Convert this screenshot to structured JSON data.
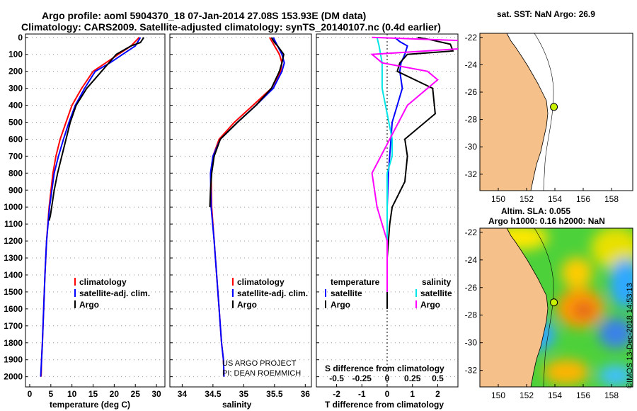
{
  "title_line1": "Argo profile: aoml 5904370_18 07-Jan-2014 27.08S 153.93E (DM data)",
  "title_line2": "Climatology: CARS2009. Satellite-adjusted climatology: synTS_20140107.nc (0.4d earlier)",
  "colors": {
    "climatology": "#ff0000",
    "satellite": "#0000ff",
    "argo": "#000000",
    "salinity_satellite": "#00e5e5",
    "salinity_argo": "#ff00ff",
    "land": "#f5c089",
    "float": "#c8f000"
  },
  "chart_data": [
    {
      "type": "line",
      "id": "temperature-profile",
      "xlabel": "temperature (deg C)",
      "ylabel": "",
      "xlim": [
        -1,
        32
      ],
      "ylim": [
        2060,
        -20
      ],
      "yinverted": true,
      "xticks": [
        0,
        5,
        10,
        15,
        20,
        25,
        30
      ],
      "yticks": [
        0,
        100,
        200,
        300,
        400,
        500,
        600,
        700,
        800,
        900,
        1000,
        1100,
        1200,
        1300,
        1400,
        1500,
        1600,
        1700,
        1800,
        1900,
        2000
      ],
      "legend": [
        "climatology",
        "satellite-adj. clim.",
        "Argo"
      ],
      "legend_position": "lower-right",
      "series": [
        {
          "name": "climatology",
          "color": "#ff0000",
          "x": [
            25.9,
            24,
            21,
            18,
            15,
            12.3,
            10,
            8.6,
            7.2,
            6.2,
            5.5,
            4.6,
            4,
            3.6,
            3.3,
            3,
            2.8,
            2.7
          ],
          "y": [
            0,
            50,
            100,
            150,
            200,
            300,
            400,
            500,
            600,
            700,
            800,
            1000,
            1200,
            1400,
            1600,
            1800,
            1900,
            2000
          ]
        },
        {
          "name": "satellite-adj. clim.",
          "color": "#0000ff",
          "x": [
            26.2,
            25,
            22,
            19,
            15.5,
            13,
            10.8,
            9.3,
            8,
            6.8,
            5.8,
            4.7,
            4,
            3.6,
            3.3,
            3,
            2.8,
            2.6
          ],
          "y": [
            0,
            50,
            100,
            150,
            200,
            300,
            400,
            500,
            600,
            700,
            800,
            1000,
            1200,
            1400,
            1600,
            1800,
            1900,
            2000
          ]
        },
        {
          "name": "Argo",
          "color": "#000000",
          "x": [
            27,
            26.6,
            26.2,
            24,
            20.5,
            17,
            13.5,
            11,
            9.6,
            8.6,
            7.6,
            6.6,
            5.8,
            5.2,
            4.9,
            4.6
          ],
          "y": [
            0,
            15,
            30,
            50,
            100,
            200,
            300,
            400,
            500,
            600,
            700,
            800,
            900,
            1000,
            1050,
            1080
          ]
        }
      ]
    },
    {
      "type": "line",
      "id": "salinity-profile",
      "xlabel": "salinity",
      "ylabel": "",
      "xlim": [
        33.8,
        36.1
      ],
      "ylim": [
        2060,
        -20
      ],
      "yinverted": true,
      "xticks": [
        34,
        34.5,
        35,
        35.5,
        36
      ],
      "legend": [
        "climatology",
        "satellite-adj. clim.",
        "Argo"
      ],
      "legend_position": "lower-right",
      "footnote": [
        "US ARGO PROJECT",
        "PI: DEAN ROEMMICH"
      ],
      "series": [
        {
          "name": "climatology",
          "color": "#ff0000",
          "x": [
            35.42,
            35.5,
            35.58,
            35.62,
            35.6,
            35.45,
            35.15,
            34.85,
            34.6,
            34.5,
            34.47,
            34.48,
            34.52,
            34.56,
            34.6,
            34.64,
            34.67,
            34.68
          ],
          "y": [
            0,
            50,
            100,
            150,
            200,
            300,
            400,
            500,
            600,
            700,
            800,
            1000,
            1200,
            1400,
            1600,
            1800,
            1900,
            2000
          ]
        },
        {
          "name": "satellite-adj. clim.",
          "color": "#0000ff",
          "x": [
            35.48,
            35.55,
            35.62,
            35.66,
            35.62,
            35.48,
            35.2,
            34.9,
            34.62,
            34.5,
            34.46,
            34.47,
            34.52,
            34.56,
            34.6,
            34.64,
            34.67,
            34.68
          ],
          "y": [
            0,
            50,
            100,
            150,
            200,
            300,
            400,
            500,
            600,
            700,
            800,
            1000,
            1200,
            1400,
            1600,
            1800,
            1900,
            2000
          ]
        },
        {
          "name": "Argo",
          "color": "#000000",
          "x": [
            35.45,
            35.5,
            35.55,
            35.65,
            35.62,
            35.58,
            35.45,
            35.2,
            34.9,
            34.62,
            34.52,
            34.48,
            34.46,
            34.45
          ],
          "y": [
            0,
            30,
            50,
            100,
            150,
            200,
            300,
            400,
            500,
            600,
            700,
            800,
            900,
            1000
          ]
        }
      ]
    },
    {
      "type": "line",
      "id": "difference-profile",
      "xlabel": "T difference from climatology",
      "xlabel2": "S difference from climatology",
      "xlim": [
        -2.8,
        2.8
      ],
      "ylim": [
        2060,
        -20
      ],
      "yinverted": true,
      "xticks": [
        -2,
        -1,
        0,
        1,
        2
      ],
      "xticks2": [
        "-0.5",
        "-0.25",
        "0",
        "0.25",
        "0.5"
      ],
      "legend_headers": [
        "temperature",
        "salinity"
      ],
      "legend": [
        "satellite",
        "Argo",
        "satellite",
        "Argo"
      ],
      "series": [
        {
          "name": "temperature satellite",
          "color": "#0000ff",
          "x": [
            0.3,
            0.5,
            0.8,
            0.7,
            0.55,
            0.5,
            0.6,
            0.4,
            0.2,
            0.15,
            0.1,
            0.05,
            0,
            0,
            0
          ],
          "y": [
            0,
            25,
            50,
            100,
            150,
            200,
            300,
            400,
            500,
            600,
            700,
            800,
            1000,
            1300,
            1500
          ]
        },
        {
          "name": "temperature Argo",
          "color": "#000000",
          "x": [
            1.2,
            1.6,
            2.5,
            2.6,
            0.8,
            0.5,
            0.4,
            1.8,
            1.9,
            0.7,
            0.8,
            0.7,
            0.2,
            0.1,
            0,
            0,
            0
          ],
          "y": [
            0,
            10,
            40,
            80,
            100,
            150,
            200,
            300,
            450,
            600,
            700,
            850,
            1000,
            1100,
            1300,
            1500,
            1600
          ]
        },
        {
          "name": "salinity satellite",
          "color": "#00e5e5",
          "x": [
            -0.1,
            -0.08,
            -0.05,
            -0.05,
            0,
            0.05,
            0.05,
            0,
            0,
            0,
            0
          ],
          "y": [
            0,
            50,
            150,
            300,
            450,
            600,
            700,
            800,
            1000,
            1300,
            1500
          ]
        },
        {
          "name": "salinity Argo",
          "color": "#ff00ff",
          "x": [
            -0.15,
            0.8,
            0.9,
            -0.15,
            -0.05,
            0.4,
            0.5,
            0.2,
            -0.15,
            -0.1,
            0,
            0
          ],
          "y": [
            0,
            20,
            60,
            100,
            150,
            200,
            250,
            400,
            800,
            1000,
            1200,
            1500
          ]
        }
      ]
    },
    {
      "type": "map",
      "id": "sst-map",
      "title": "sat. SST: NaN Argo: 26.9",
      "xticks": [
        "150",
        "152",
        "154",
        "156",
        "158"
      ],
      "yticks": [
        "-22",
        "-24",
        "-26",
        "-28",
        "-30",
        "-32"
      ],
      "float_lon": 153.93,
      "float_lat": -27.08
    },
    {
      "type": "map",
      "id": "sla-map",
      "title_line1": "Altim. SLA: 0.055",
      "title_line2": "Argo h1000: 0.16 h2000: NaN",
      "xticks": [
        "150",
        "152",
        "154",
        "156",
        "158"
      ],
      "yticks": [
        "-22",
        "-24",
        "-26",
        "-28",
        "-30",
        "-32"
      ],
      "float_lon": 153.93,
      "float_lat": -27.08
    }
  ],
  "credit": "©IMOS 13-Dec-2018 14:53:13"
}
